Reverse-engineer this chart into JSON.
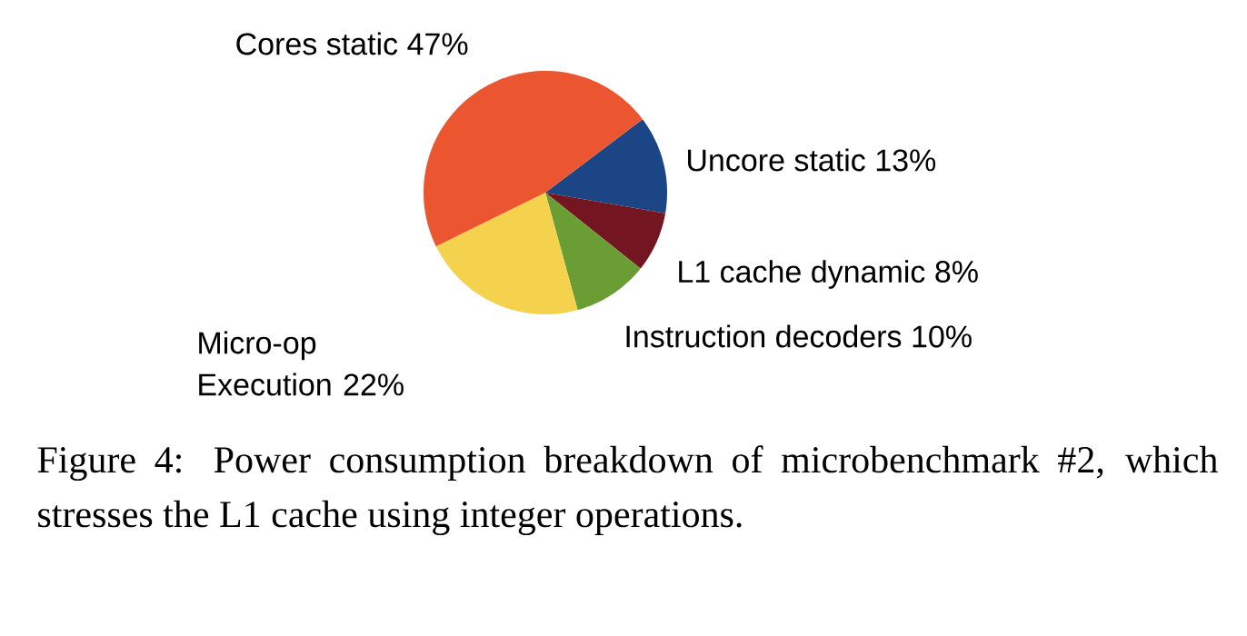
{
  "chart_data": {
    "type": "pie",
    "categories": [
      "Uncore static",
      "L1 cache dynamic",
      "Instruction decoders",
      "Micro-op Execution",
      "Cores static"
    ],
    "values": [
      13,
      8,
      10,
      22,
      47
    ],
    "value_labels": [
      "13%",
      "8%",
      "10%",
      "22%",
      "47%"
    ],
    "colors": [
      "#1c4585",
      "#741622",
      "#6b9d35",
      "#f5d24d",
      "#eb552f"
    ],
    "annotations": [
      "Figure 4: Power consumption breakdown of microbenchmark #2, which stresses the L1 cache using integer operations."
    ]
  }
}
